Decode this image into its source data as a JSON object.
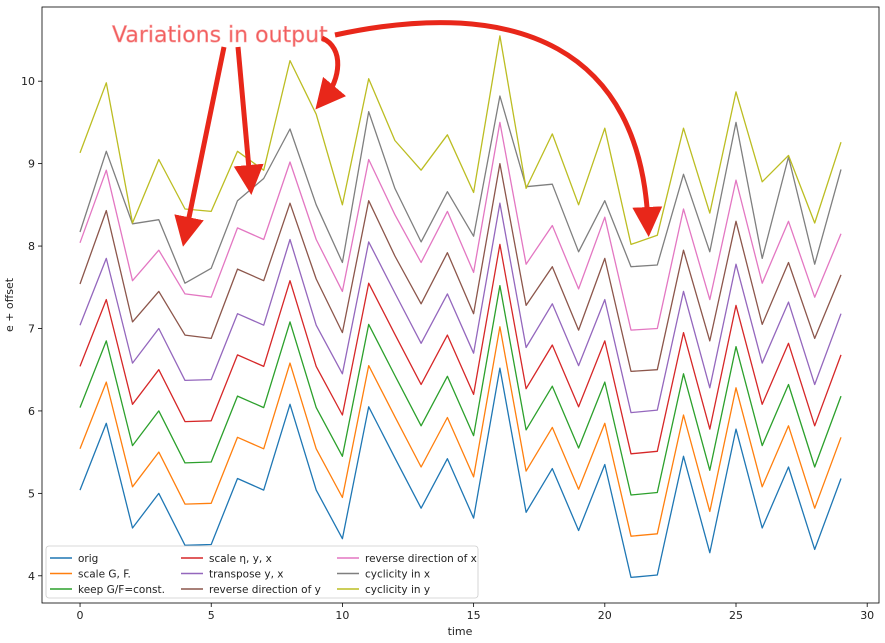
{
  "chart_data": {
    "type": "line",
    "xlabel": "time",
    "ylabel": "e + offset",
    "xlim": [
      -1.45,
      30.45
    ],
    "ylim": [
      3.67,
      10.9
    ],
    "xticks": [
      0,
      5,
      10,
      15,
      20,
      25,
      30
    ],
    "yticks": [
      4,
      5,
      6,
      7,
      8,
      9,
      10
    ],
    "grid": false,
    "legend_position": "bottom-left",
    "legend_columns": 3,
    "x": [
      0,
      1,
      2,
      3,
      4,
      5,
      6,
      7,
      8,
      9,
      10,
      11,
      12,
      13,
      14,
      15,
      16,
      17,
      18,
      19,
      20,
      21,
      22,
      23,
      24,
      25,
      26,
      27,
      28,
      29
    ],
    "series": [
      {
        "name": "orig",
        "color": "#1f77b4",
        "values": [
          5.04,
          5.85,
          4.58,
          5.0,
          4.37,
          4.38,
          5.18,
          5.04,
          6.08,
          5.04,
          4.45,
          6.05,
          5.43,
          4.82,
          5.42,
          4.7,
          6.52,
          4.77,
          5.3,
          4.55,
          5.35,
          3.98,
          4.01,
          5.45,
          4.28,
          5.78,
          4.58,
          5.32,
          4.32,
          5.18
        ]
      },
      {
        "name": "scale G, F.",
        "color": "#ff7f0e",
        "values": [
          5.54,
          6.35,
          5.08,
          5.5,
          4.87,
          4.88,
          5.68,
          5.54,
          6.58,
          5.54,
          4.95,
          6.55,
          5.93,
          5.32,
          5.92,
          5.2,
          7.02,
          5.27,
          5.8,
          5.05,
          5.85,
          4.48,
          4.51,
          5.95,
          4.78,
          6.28,
          5.08,
          5.82,
          4.82,
          5.68
        ]
      },
      {
        "name": "keep G/F=const.",
        "color": "#2ca02c",
        "values": [
          6.04,
          6.85,
          5.58,
          6.0,
          5.37,
          5.38,
          6.18,
          6.04,
          7.08,
          6.04,
          5.45,
          7.05,
          6.43,
          5.82,
          6.42,
          5.7,
          7.52,
          5.77,
          6.3,
          5.55,
          6.35,
          4.98,
          5.01,
          6.45,
          5.28,
          6.78,
          5.58,
          6.32,
          5.32,
          6.18
        ]
      },
      {
        "name": "scale η, y, x",
        "color": "#d62728",
        "values": [
          6.54,
          7.35,
          6.08,
          6.5,
          5.87,
          5.88,
          6.68,
          6.54,
          7.58,
          6.54,
          5.95,
          7.55,
          6.93,
          6.32,
          6.92,
          6.2,
          8.02,
          6.27,
          6.8,
          6.05,
          6.85,
          5.48,
          5.51,
          6.95,
          5.78,
          7.28,
          6.08,
          6.82,
          5.82,
          6.68
        ]
      },
      {
        "name": "transpose y, x",
        "color": "#9467bd",
        "values": [
          7.04,
          7.85,
          6.58,
          7.0,
          6.37,
          6.38,
          7.18,
          7.04,
          8.08,
          7.04,
          6.45,
          8.05,
          7.43,
          6.82,
          7.42,
          6.7,
          8.52,
          6.77,
          7.3,
          6.55,
          7.35,
          5.98,
          6.01,
          7.45,
          6.28,
          7.78,
          6.58,
          7.32,
          6.32,
          7.18
        ]
      },
      {
        "name": "reverse direction of y",
        "color": "#8c564b",
        "values": [
          7.54,
          8.43,
          7.08,
          7.45,
          6.92,
          6.88,
          7.72,
          7.58,
          8.52,
          7.6,
          6.95,
          8.55,
          7.88,
          7.3,
          7.92,
          7.18,
          9.0,
          7.28,
          7.75,
          6.98,
          7.85,
          6.48,
          6.5,
          7.95,
          6.85,
          8.3,
          7.05,
          7.8,
          6.88,
          7.65
        ]
      },
      {
        "name": "reverse direction of x",
        "color": "#e377c2",
        "values": [
          8.04,
          8.92,
          7.58,
          7.95,
          7.42,
          7.38,
          8.22,
          8.08,
          9.02,
          8.08,
          7.45,
          9.05,
          8.38,
          7.8,
          8.42,
          7.68,
          9.5,
          7.78,
          8.25,
          7.48,
          8.35,
          6.98,
          7.0,
          8.45,
          7.35,
          8.8,
          7.55,
          8.3,
          7.38,
          8.15
        ]
      },
      {
        "name": "cyclicity in x",
        "color": "#7f7f7f",
        "values": [
          8.17,
          9.15,
          8.27,
          8.32,
          7.55,
          7.73,
          8.55,
          8.82,
          9.42,
          8.5,
          7.8,
          9.63,
          8.7,
          8.05,
          8.66,
          8.12,
          9.82,
          8.72,
          8.75,
          7.93,
          8.55,
          7.75,
          7.77,
          8.87,
          7.93,
          9.5,
          7.85,
          9.08,
          7.78,
          8.93
        ]
      },
      {
        "name": "cyclicity in y",
        "color": "#bcbd22",
        "values": [
          9.13,
          9.98,
          8.28,
          9.05,
          8.45,
          8.42,
          9.15,
          8.92,
          10.25,
          9.6,
          8.5,
          10.03,
          9.28,
          8.92,
          9.35,
          8.65,
          10.55,
          8.7,
          9.36,
          8.5,
          9.43,
          8.02,
          8.13,
          9.43,
          8.4,
          9.87,
          8.78,
          9.1,
          8.28,
          9.26
        ]
      }
    ],
    "annotation": {
      "text": "Variations in output",
      "color": "#e8271a"
    }
  }
}
